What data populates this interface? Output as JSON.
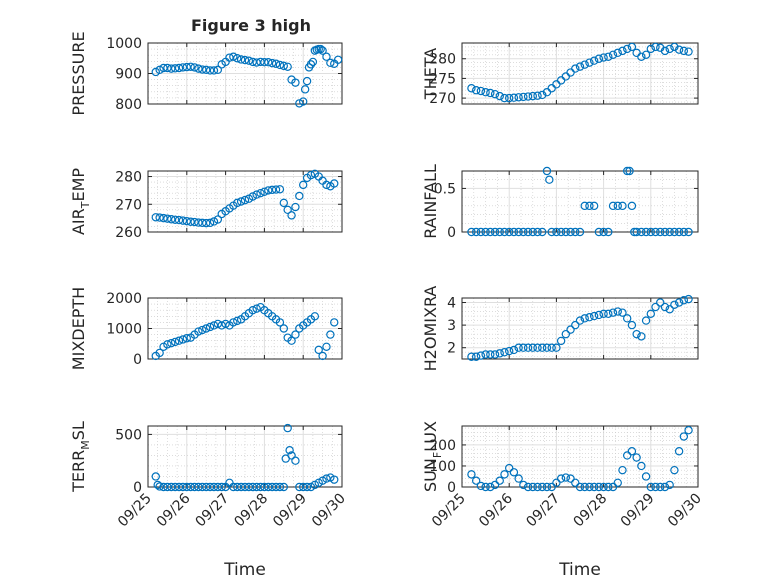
{
  "figure_title": "Figure 3 high",
  "colors": {
    "marker": "#0072bd",
    "axes": "#262626",
    "grid": "#dfdfdf"
  },
  "chart_data": [
    {
      "type": "scatter",
      "title": "Figure 3 high",
      "ylabel": "PRESSURE",
      "xlabel": "",
      "xlim": [
        "09/25",
        "09/30"
      ],
      "ylim": [
        800,
        1000
      ],
      "yticks": [
        "800",
        "900",
        "1000"
      ],
      "xticks": [],
      "grid": true,
      "x": [
        0.2,
        0.3,
        0.4,
        0.5,
        0.6,
        0.7,
        0.8,
        0.9,
        1.0,
        1.1,
        1.2,
        1.3,
        1.4,
        1.5,
        1.6,
        1.7,
        1.8,
        1.9,
        2.0,
        2.1,
        2.2,
        2.3,
        2.4,
        2.5,
        2.6,
        2.7,
        2.8,
        2.9,
        3.0,
        3.1,
        3.2,
        3.3,
        3.4,
        3.5,
        3.6,
        3.7,
        3.8,
        3.9,
        4.0,
        4.05,
        4.1,
        4.15,
        4.2,
        4.25,
        4.3,
        4.35,
        4.4,
        4.45,
        4.5,
        4.6,
        4.7,
        4.8,
        4.9
      ],
      "y": [
        905,
        912,
        918,
        918,
        916,
        917,
        918,
        920,
        921,
        922,
        920,
        916,
        913,
        912,
        910,
        910,
        912,
        930,
        938,
        952,
        955,
        950,
        946,
        944,
        942,
        938,
        936,
        938,
        937,
        937,
        934,
        932,
        928,
        925,
        922,
        880,
        870,
        802,
        808,
        848,
        875,
        920,
        930,
        938,
        975,
        978,
        980,
        980,
        975,
        955,
        935,
        932,
        945
      ]
    },
    {
      "type": "scatter",
      "ylabel": "THETA",
      "xlabel": "",
      "xlim": [
        "09/25",
        "09/30"
      ],
      "ylim": [
        268.5,
        284
      ],
      "yticks": [
        "270",
        "275",
        "280"
      ],
      "xticks": [],
      "grid": true,
      "x": [
        0.2,
        0.3,
        0.4,
        0.5,
        0.6,
        0.7,
        0.8,
        0.9,
        1.0,
        1.1,
        1.2,
        1.3,
        1.4,
        1.5,
        1.6,
        1.7,
        1.8,
        1.9,
        2.0,
        2.1,
        2.2,
        2.3,
        2.4,
        2.5,
        2.6,
        2.7,
        2.8,
        2.9,
        3.0,
        3.1,
        3.2,
        3.3,
        3.4,
        3.5,
        3.6,
        3.7,
        3.8,
        3.9,
        4.0,
        4.1,
        4.2,
        4.3,
        4.4,
        4.5,
        4.6,
        4.7,
        4.8
      ],
      "y": [
        272.5,
        272.0,
        271.8,
        271.5,
        271.3,
        271.0,
        270.5,
        270.0,
        270.0,
        270.1,
        270.2,
        270.3,
        270.4,
        270.5,
        270.6,
        270.8,
        271.5,
        272.5,
        273.5,
        274.5,
        275.5,
        276.5,
        277.5,
        278.0,
        278.5,
        279.0,
        279.5,
        280.0,
        280.3,
        280.5,
        281.0,
        281.5,
        282.0,
        282.5,
        283.0,
        281.5,
        280.5,
        281.0,
        282.5,
        283.0,
        282.8,
        282.0,
        282.5,
        283.0,
        282.3,
        282.0,
        281.8
      ]
    },
    {
      "type": "scatter",
      "ylabel": "AIR_TEMP",
      "xlabel": "",
      "xlim": [
        "09/25",
        "09/30"
      ],
      "ylim": [
        260,
        282
      ],
      "yticks": [
        "260",
        "270",
        "280"
      ],
      "xticks": [],
      "grid": true,
      "x": [
        0.2,
        0.3,
        0.4,
        0.5,
        0.6,
        0.7,
        0.8,
        0.9,
        1.0,
        1.1,
        1.2,
        1.3,
        1.4,
        1.5,
        1.6,
        1.7,
        1.8,
        1.9,
        2.0,
        2.1,
        2.2,
        2.3,
        2.4,
        2.5,
        2.6,
        2.7,
        2.8,
        2.9,
        3.0,
        3.1,
        3.2,
        3.3,
        3.4,
        3.5,
        3.6,
        3.7,
        3.8,
        3.9,
        4.0,
        4.1,
        4.2,
        4.3,
        4.4,
        4.5,
        4.6,
        4.7,
        4.8
      ],
      "y": [
        265.3,
        265.2,
        265.0,
        264.8,
        264.6,
        264.4,
        264.3,
        264.1,
        263.9,
        263.7,
        263.6,
        263.4,
        263.3,
        263.2,
        263.3,
        263.8,
        264.5,
        266.5,
        267.5,
        268.5,
        269.5,
        270.5,
        271.0,
        271.5,
        272.0,
        272.8,
        273.5,
        274.0,
        274.5,
        275.0,
        275.2,
        275.3,
        275.4,
        270.5,
        268.0,
        266.0,
        269.0,
        273.0,
        277.0,
        279.5,
        280.5,
        281.0,
        280.0,
        278.5,
        277.0,
        276.5,
        277.5
      ]
    },
    {
      "type": "scatter",
      "ylabel": "RAINFALL",
      "xlabel": "",
      "xlim": [
        "09/25",
        "09/30"
      ],
      "ylim": [
        0,
        0.7
      ],
      "yticks": [
        "0",
        "0.5"
      ],
      "xticks": [],
      "grid": true,
      "x": [
        0.2,
        0.3,
        0.4,
        0.5,
        0.6,
        0.7,
        0.8,
        0.9,
        1.0,
        1.1,
        1.2,
        1.3,
        1.4,
        1.5,
        1.6,
        1.7,
        1.8,
        1.85,
        1.9,
        2.0,
        2.1,
        2.2,
        2.3,
        2.4,
        2.5,
        2.6,
        2.7,
        2.8,
        2.9,
        3.0,
        3.1,
        3.2,
        3.3,
        3.4,
        3.5,
        3.55,
        3.6,
        3.65,
        3.7,
        3.8,
        3.9,
        4.0,
        4.1,
        4.2,
        4.3,
        4.4,
        4.5,
        4.6,
        4.7,
        4.8
      ],
      "y": [
        0,
        0,
        0,
        0,
        0,
        0,
        0,
        0,
        0,
        0,
        0,
        0,
        0,
        0,
        0,
        0,
        0.7,
        0.6,
        0,
        0,
        0,
        0,
        0,
        0,
        0,
        0.3,
        0.3,
        0.3,
        0,
        0,
        0,
        0.3,
        0.3,
        0.3,
        0.7,
        0.7,
        0.3,
        0,
        0,
        0,
        0,
        0,
        0,
        0,
        0,
        0,
        0,
        0,
        0,
        0
      ]
    },
    {
      "type": "scatter",
      "ylabel": "MIXDEPTH",
      "xlabel": "",
      "xlim": [
        "09/25",
        "09/30"
      ],
      "ylim": [
        0,
        2000
      ],
      "yticks": [
        "0",
        "1000",
        "2000"
      ],
      "xticks": [],
      "grid": true,
      "x": [
        0.2,
        0.3,
        0.4,
        0.5,
        0.6,
        0.7,
        0.8,
        0.9,
        1.0,
        1.1,
        1.2,
        1.3,
        1.4,
        1.5,
        1.6,
        1.7,
        1.8,
        1.9,
        2.0,
        2.1,
        2.2,
        2.3,
        2.4,
        2.5,
        2.6,
        2.7,
        2.8,
        2.9,
        3.0,
        3.1,
        3.2,
        3.3,
        3.4,
        3.5,
        3.6,
        3.7,
        3.8,
        3.9,
        4.0,
        4.1,
        4.2,
        4.3,
        4.4,
        4.5,
        4.6,
        4.7,
        4.8
      ],
      "y": [
        100,
        200,
        400,
        480,
        520,
        560,
        600,
        640,
        680,
        700,
        800,
        900,
        950,
        1000,
        1050,
        1100,
        1150,
        1100,
        1150,
        1100,
        1200,
        1250,
        1300,
        1400,
        1500,
        1600,
        1650,
        1700,
        1600,
        1500,
        1400,
        1300,
        1200,
        1000,
        700,
        600,
        800,
        1000,
        1100,
        1200,
        1300,
        1400,
        300,
        100,
        400,
        800,
        1200
      ]
    },
    {
      "type": "scatter",
      "ylabel": "H2OMIXRA",
      "xlabel": "",
      "xlim": [
        "09/25",
        "09/30"
      ],
      "ylim": [
        1.5,
        4.2
      ],
      "yticks": [
        "2",
        "3",
        "4"
      ],
      "xticks": [],
      "grid": true,
      "x": [
        0.2,
        0.3,
        0.4,
        0.5,
        0.6,
        0.7,
        0.8,
        0.9,
        1.0,
        1.1,
        1.2,
        1.3,
        1.4,
        1.5,
        1.6,
        1.7,
        1.8,
        1.9,
        2.0,
        2.1,
        2.2,
        2.3,
        2.4,
        2.5,
        2.6,
        2.7,
        2.8,
        2.9,
        3.0,
        3.1,
        3.2,
        3.3,
        3.4,
        3.5,
        3.6,
        3.7,
        3.8,
        3.9,
        4.0,
        4.1,
        4.2,
        4.3,
        4.4,
        4.5,
        4.6,
        4.7,
        4.8
      ],
      "y": [
        1.6,
        1.6,
        1.65,
        1.7,
        1.7,
        1.7,
        1.75,
        1.8,
        1.85,
        1.9,
        2.0,
        2.0,
        2.0,
        2.0,
        2.0,
        2.0,
        2.0,
        2.0,
        2.0,
        2.3,
        2.6,
        2.8,
        3.0,
        3.2,
        3.3,
        3.35,
        3.4,
        3.45,
        3.5,
        3.5,
        3.55,
        3.6,
        3.55,
        3.3,
        3.0,
        2.6,
        2.5,
        3.2,
        3.5,
        3.8,
        4.0,
        3.8,
        3.7,
        3.9,
        4.0,
        4.1,
        4.15
      ]
    },
    {
      "type": "scatter",
      "ylabel": "TERR_MSL",
      "xlabel": "Time",
      "xlim": [
        "09/25",
        "09/30"
      ],
      "ylim": [
        0,
        580
      ],
      "yticks": [
        "0",
        "500"
      ],
      "xticks": [
        "09/25",
        "09/26",
        "09/27",
        "09/28",
        "09/29",
        "09/30"
      ],
      "grid": true,
      "x": [
        0.2,
        0.25,
        0.3,
        0.4,
        0.5,
        0.6,
        0.7,
        0.8,
        0.9,
        1.0,
        1.1,
        1.2,
        1.3,
        1.4,
        1.5,
        1.6,
        1.7,
        1.8,
        1.9,
        2.0,
        2.1,
        2.2,
        2.3,
        2.4,
        2.5,
        2.6,
        2.7,
        2.8,
        2.9,
        3.0,
        3.1,
        3.2,
        3.3,
        3.4,
        3.5,
        3.55,
        3.6,
        3.65,
        3.7,
        3.8,
        3.9,
        4.0,
        4.1,
        4.2,
        4.3,
        4.4,
        4.5,
        4.6,
        4.7,
        4.8
      ],
      "y": [
        100,
        20,
        5,
        0,
        0,
        0,
        0,
        0,
        0,
        0,
        0,
        0,
        0,
        0,
        0,
        0,
        0,
        0,
        0,
        0,
        40,
        0,
        0,
        0,
        0,
        0,
        0,
        0,
        0,
        0,
        0,
        0,
        0,
        0,
        0,
        270,
        560,
        350,
        300,
        250,
        0,
        0,
        0,
        0,
        20,
        40,
        60,
        80,
        90,
        70
      ]
    },
    {
      "type": "scatter",
      "ylabel": "SUN_FLUX",
      "xlabel": "Time",
      "xlim": [
        "09/25",
        "09/30"
      ],
      "ylim": [
        0,
        290
      ],
      "yticks": [
        "0",
        "100",
        "200"
      ],
      "xticks": [
        "09/25",
        "09/26",
        "09/27",
        "09/28",
        "09/29",
        "09/30"
      ],
      "grid": true,
      "x": [
        0.2,
        0.3,
        0.4,
        0.5,
        0.6,
        0.7,
        0.8,
        0.9,
        1.0,
        1.1,
        1.2,
        1.3,
        1.4,
        1.5,
        1.6,
        1.7,
        1.8,
        1.9,
        2.0,
        2.1,
        2.2,
        2.3,
        2.4,
        2.5,
        2.6,
        2.7,
        2.8,
        2.9,
        3.0,
        3.1,
        3.2,
        3.3,
        3.4,
        3.5,
        3.6,
        3.7,
        3.8,
        3.9,
        4.0,
        4.1,
        4.2,
        4.3,
        4.4,
        4.5,
        4.6,
        4.7,
        4.8
      ],
      "y": [
        60,
        30,
        5,
        0,
        0,
        10,
        30,
        60,
        90,
        70,
        40,
        10,
        0,
        0,
        0,
        0,
        0,
        0,
        20,
        40,
        45,
        40,
        20,
        0,
        0,
        0,
        0,
        0,
        0,
        0,
        0,
        20,
        80,
        150,
        170,
        140,
        100,
        50,
        0,
        0,
        0,
        0,
        10,
        80,
        170,
        240,
        270
      ]
    }
  ]
}
